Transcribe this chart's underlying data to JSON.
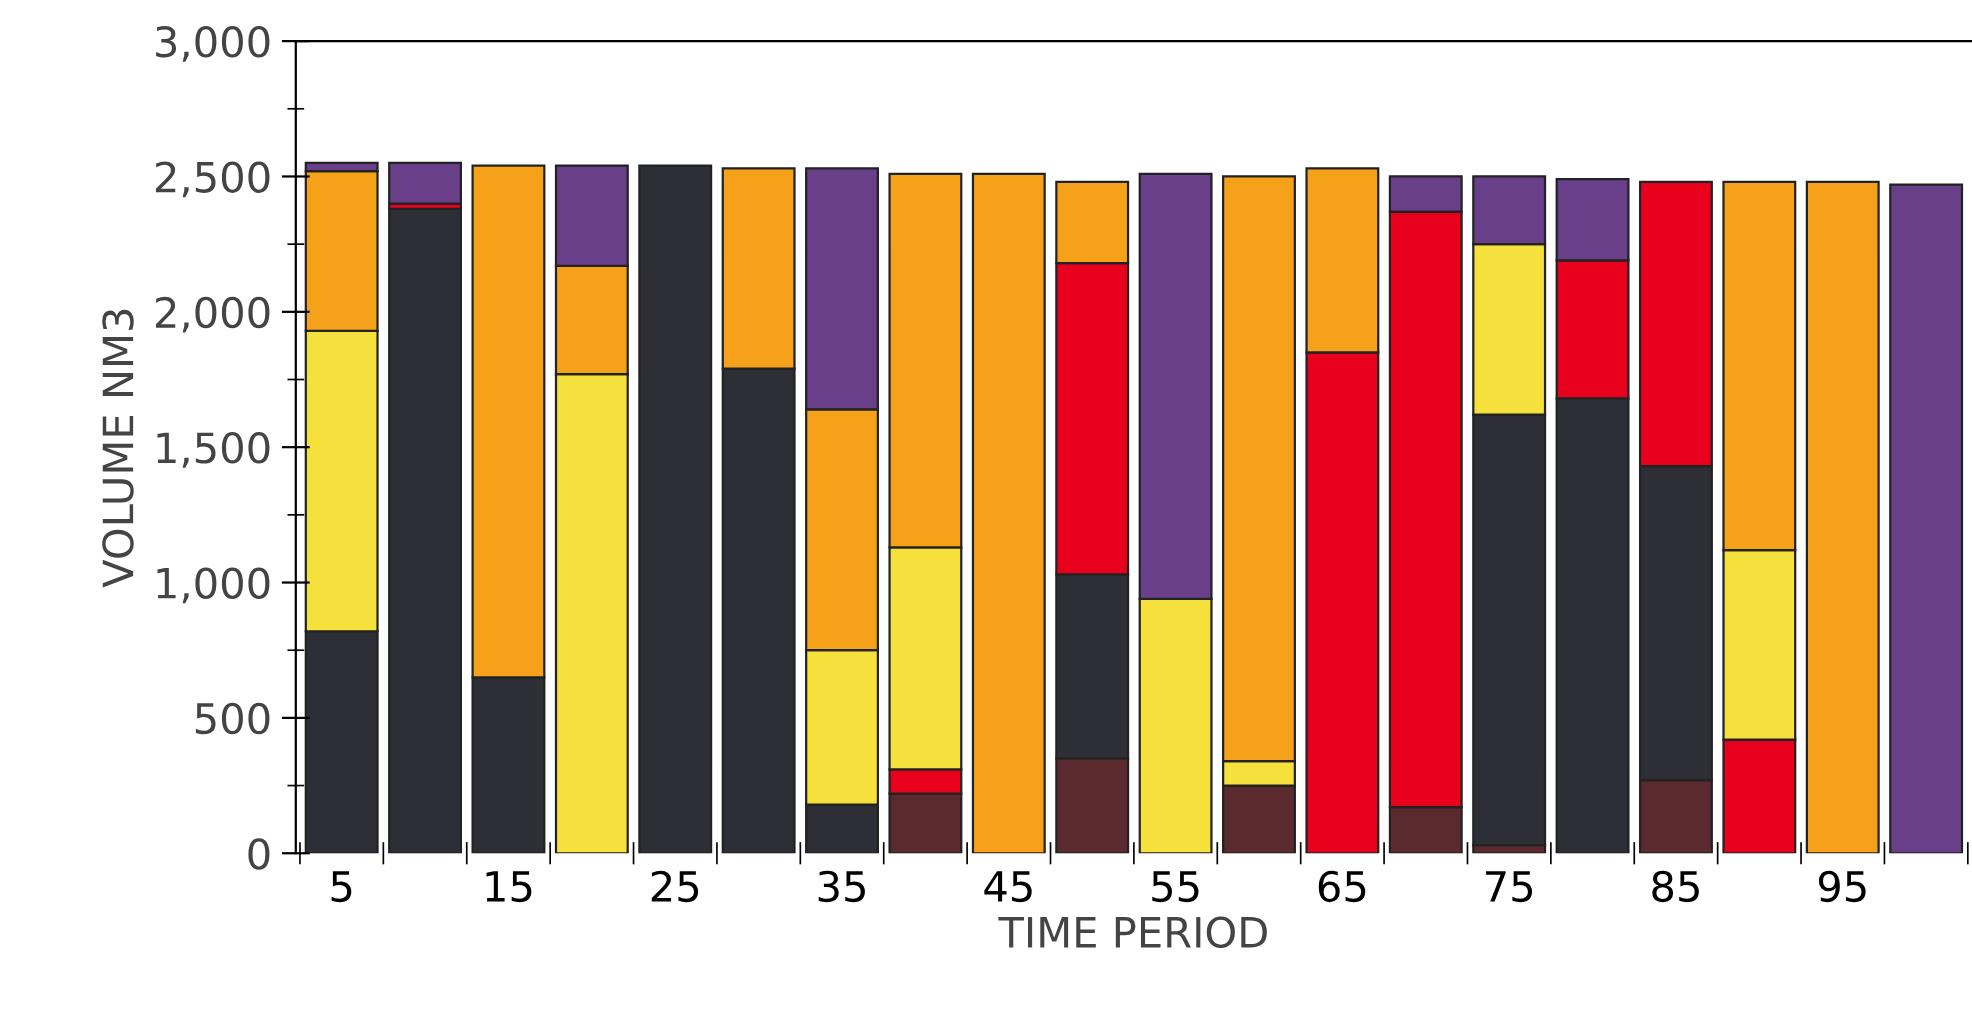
{
  "chart_data": {
    "type": "bar",
    "stacked": true,
    "xlabel": "TIME PERIOD",
    "ylabel": "VOLUME NM3",
    "categories": [
      "5",
      null,
      "15",
      null,
      "25",
      null,
      "35",
      null,
      "45",
      null,
      "55",
      null,
      "65",
      null,
      "75",
      null,
      "85",
      null,
      "95",
      null
    ],
    "series": [
      {
        "color": "#5a2a2e",
        "values": [
          0,
          0,
          0,
          0,
          0,
          0,
          0,
          220,
          0,
          350,
          0,
          250,
          0,
          170,
          30,
          0,
          270,
          0,
          0,
          0
        ]
      },
      {
        "color": "#2e2f36",
        "values": [
          820,
          2380,
          650,
          0,
          2540,
          1790,
          180,
          0,
          0,
          680,
          0,
          0,
          0,
          0,
          1590,
          1680,
          1160,
          0,
          0,
          0
        ]
      },
      {
        "color": "#e8001c",
        "values": [
          0,
          20,
          0,
          0,
          0,
          0,
          0,
          90,
          0,
          1150,
          0,
          0,
          1850,
          2200,
          0,
          510,
          1050,
          420,
          0,
          0
        ]
      },
      {
        "color": "#f5e03c",
        "values": [
          1110,
          0,
          0,
          1770,
          0,
          0,
          570,
          820,
          0,
          0,
          940,
          90,
          0,
          0,
          630,
          0,
          0,
          700,
          0,
          0
        ]
      },
      {
        "color": "#f5a21a",
        "values": [
          590,
          0,
          1890,
          400,
          0,
          740,
          890,
          1380,
          2510,
          300,
          0,
          2160,
          680,
          0,
          0,
          0,
          0,
          1360,
          2480,
          0
        ]
      },
      {
        "color": "#6a3f8a",
        "values": [
          30,
          150,
          0,
          370,
          0,
          0,
          890,
          0,
          0,
          0,
          1570,
          0,
          0,
          130,
          250,
          300,
          0,
          0,
          0,
          2470
        ]
      }
    ],
    "ylim": [
      0,
      3000
    ],
    "yticks": [
      {
        "value": 0,
        "label": "0"
      },
      {
        "value": 500,
        "label": "500"
      },
      {
        "value": 1000,
        "label": "1,000"
      },
      {
        "value": 1500,
        "label": "1,500"
      },
      {
        "value": 2000,
        "label": "2,000"
      },
      {
        "value": 2500,
        "label": "2,500"
      },
      {
        "value": 3000,
        "label": "3,000"
      }
    ],
    "grid": false,
    "legend": false
  }
}
